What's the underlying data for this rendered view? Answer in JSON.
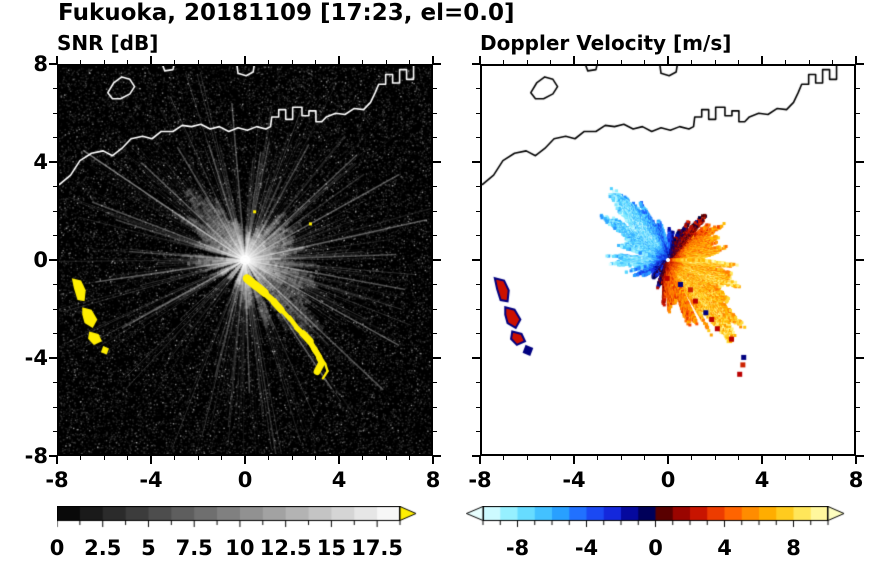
{
  "figure": {
    "title": "Fukuoka, 20181109 [17:23, el=0.0]",
    "background": "#ffffff"
  },
  "panels": [
    {
      "title": "SNR [dB]"
    },
    {
      "title": "Doppler Velocity [m/s]"
    }
  ],
  "axes": {
    "xlim": [
      -8,
      8
    ],
    "ylim": [
      -8,
      8
    ],
    "major_ticks": [
      -8,
      -4,
      0,
      4,
      8
    ],
    "minor_step": 1,
    "x_tick_labels": [
      "-8",
      "-4",
      "0",
      "4",
      "8"
    ],
    "y_tick_labels": [
      "8",
      "4",
      "0",
      "-4",
      "-8"
    ],
    "y_tick_values": [
      8,
      4,
      0,
      -4,
      -8
    ]
  },
  "colorbars": {
    "snr": {
      "range": [
        0,
        18.75
      ],
      "segments": 15,
      "tick_step": 1.25,
      "label_values": [
        0,
        2.5,
        5,
        7.5,
        10,
        12.5,
        15,
        17.5
      ],
      "labels": [
        "0",
        "2.5",
        "5",
        "7.5",
        "10",
        "12.5",
        "15",
        "17.5"
      ],
      "type": "grayscale",
      "over_arrow": "#FFEE00"
    },
    "doppler": {
      "range": [
        -10,
        10
      ],
      "segments": 20,
      "tick_step": 1,
      "label_values": [
        -8,
        -4,
        0,
        4,
        8
      ],
      "labels": [
        "-8",
        "-4",
        "0",
        "4",
        "8"
      ],
      "under_arrow": "#E8FFFF",
      "over_arrow": "#FFFFC0",
      "stops": [
        {
          "v": -10,
          "c": [
            232,
            255,
            255
          ]
        },
        {
          "v": -8.5,
          "c": [
            150,
            240,
            255
          ]
        },
        {
          "v": -7,
          "c": [
            80,
            210,
            255
          ]
        },
        {
          "v": -5.5,
          "c": [
            40,
            160,
            255
          ]
        },
        {
          "v": -4,
          "c": [
            30,
            90,
            255
          ]
        },
        {
          "v": -2.5,
          "c": [
            20,
            40,
            220
          ]
        },
        {
          "v": -1.2,
          "c": [
            0,
            0,
            140
          ]
        },
        {
          "v": -0.1,
          "c": [
            0,
            0,
            60
          ]
        },
        {
          "v": 0.1,
          "c": [
            60,
            0,
            0
          ]
        },
        {
          "v": 1.2,
          "c": [
            140,
            0,
            0
          ]
        },
        {
          "v": 2.5,
          "c": [
            200,
            20,
            0
          ]
        },
        {
          "v": 4,
          "c": [
            255,
            80,
            0
          ]
        },
        {
          "v": 5.5,
          "c": [
            255,
            140,
            0
          ]
        },
        {
          "v": 7,
          "c": [
            255,
            190,
            0
          ]
        },
        {
          "v": 8.5,
          "c": [
            255,
            230,
            90
          ]
        },
        {
          "v": 10,
          "c": [
            255,
            255,
            190
          ]
        }
      ]
    }
  },
  "chart_data": [
    {
      "type": "heatmap",
      "title": "SNR [dB]",
      "xlim": [
        -8,
        8
      ],
      "ylim": [
        -8,
        8
      ],
      "xticks": [
        -8,
        -4,
        0,
        4,
        8
      ],
      "yticks": [
        -8,
        -4,
        0,
        4,
        8
      ],
      "value_range_db": [
        0,
        18.75
      ],
      "colorbar_labels": [
        0,
        2.5,
        5,
        7.5,
        10,
        12.5,
        15,
        17.5
      ],
      "radar_site": [
        0,
        0
      ],
      "features": "black noise-speckle sea background, bright white radial beam streaks from radar at origin, gray echo fan strongest to NW and SE, saturated yellow ground-clutter arcs near (-7,-1)..(-6,-3.8) and a ragged arc from (0,-0.8) to (3.2,-4.6), white coastline with harbor piers across the top"
    },
    {
      "type": "heatmap",
      "title": "Doppler Velocity [m/s]",
      "xlim": [
        -8,
        8
      ],
      "ylim": [
        -8,
        8
      ],
      "xticks": [
        -8,
        -4,
        0,
        4,
        8
      ],
      "yticks": [
        -8,
        -4,
        0,
        4,
        8
      ],
      "value_range_ms": [
        -10,
        10
      ],
      "colorbar_labels": [
        -8,
        -4,
        0,
        4,
        8
      ],
      "radar_site": [
        0,
        0
      ],
      "features": "white background, black coastline, ragged radial velocity fan around radar: blue/cyan negative velocities to NW-N-W, dark red to orange positive to NE-E, yellow maximum positive to SE-S, red and navy ground-clutter patches at far west and scattered along the SE clutter arc"
    }
  ],
  "scene": {
    "seed": 20181109,
    "echo": {
      "vmax": 8,
      "dir_deg": -25,
      "base_range": 3.8,
      "sector_scale": [
        0.8,
        0.85,
        0.8,
        0.7,
        0.55,
        0.35,
        0.35,
        0.55,
        0.9,
        1.0,
        0.92,
        0.6,
        0.72,
        0.5,
        0.4,
        0.28,
        0.25,
        0.4,
        0.6,
        0.85,
        1.05,
        1.1,
        1.0,
        0.9
      ],
      "blocked_sectors": [
        [
          88,
          96
        ],
        [
          167,
          174
        ],
        [
          196,
          202
        ],
        [
          214,
          221
        ],
        [
          236,
          246
        ],
        [
          283,
          286
        ],
        [
          296,
          301
        ]
      ]
    },
    "bright_rays": [
      {
        "az": 147,
        "len": 8.3,
        "a": 0.45
      },
      {
        "az": 160,
        "len": 7,
        "a": 0.3
      },
      {
        "az": 138,
        "len": 6,
        "a": 0.3
      },
      {
        "az": 122,
        "len": 5.5,
        "a": 0.28
      },
      {
        "az": 108,
        "len": 5,
        "a": 0.25
      },
      {
        "az": 95,
        "len": 6.5,
        "a": 0.3
      },
      {
        "az": 78,
        "len": 5,
        "a": 0.22
      },
      {
        "az": 60,
        "len": 5.5,
        "a": 0.25
      },
      {
        "az": 42,
        "len": 6.5,
        "a": 0.3
      },
      {
        "az": 28,
        "len": 7.5,
        "a": 0.35
      },
      {
        "az": 12,
        "len": 8,
        "a": 0.35
      },
      {
        "az": 2,
        "len": 6.5,
        "a": 0.3
      },
      {
        "az": 350,
        "len": 7,
        "a": 0.3
      },
      {
        "az": 332,
        "len": 7.5,
        "a": 0.35
      },
      {
        "az": 318,
        "len": 8,
        "a": 0.3
      },
      {
        "az": 305,
        "len": 6.5,
        "a": 0.28
      },
      {
        "az": 272,
        "len": 5.5,
        "a": 0.25
      },
      {
        "az": 255,
        "len": 5,
        "a": 0.2
      },
      {
        "az": 208,
        "len": 6,
        "a": 0.28
      },
      {
        "az": 188,
        "len": 6.5,
        "a": 0.3
      },
      {
        "az": 176,
        "len": 5,
        "a": 0.22
      }
    ],
    "coastlines": [
      {
        "closed": false,
        "pts": [
          [
            -8,
            3.1
          ],
          [
            -7.5,
            3.5
          ],
          [
            -7.1,
            4.1
          ],
          [
            -6.6,
            4.4
          ],
          [
            -6.1,
            4.5
          ],
          [
            -5.7,
            4.3
          ],
          [
            -5.3,
            4.6
          ],
          [
            -4.9,
            5.0
          ],
          [
            -4.4,
            5.1
          ],
          [
            -4.0,
            5.0
          ],
          [
            -3.6,
            5.3
          ],
          [
            -3.1,
            5.3
          ],
          [
            -2.7,
            5.55
          ],
          [
            -2.3,
            5.5
          ],
          [
            -1.9,
            5.6
          ],
          [
            -1.5,
            5.4
          ],
          [
            -1.1,
            5.5
          ],
          [
            -0.7,
            5.3
          ],
          [
            -0.3,
            5.45
          ],
          [
            0.1,
            5.35
          ],
          [
            0.5,
            5.5
          ],
          [
            0.9,
            5.4
          ],
          [
            1.1,
            5.5
          ],
          [
            1.15,
            5.9
          ],
          [
            1.45,
            5.9
          ],
          [
            1.45,
            6.2
          ],
          [
            1.75,
            6.2
          ],
          [
            1.75,
            5.8
          ],
          [
            2.05,
            5.8
          ],
          [
            2.05,
            6.3
          ],
          [
            2.45,
            6.3
          ],
          [
            2.45,
            5.95
          ],
          [
            2.75,
            5.95
          ],
          [
            2.75,
            6.15
          ],
          [
            3.05,
            6.15
          ],
          [
            3.05,
            5.7
          ],
          [
            3.3,
            5.7
          ],
          [
            3.5,
            5.9
          ],
          [
            3.9,
            6.05
          ],
          [
            4.3,
            6.0
          ],
          [
            4.7,
            6.25
          ],
          [
            5.1,
            6.2
          ],
          [
            5.4,
            6.5
          ],
          [
            5.6,
            6.9
          ],
          [
            5.75,
            7.25
          ],
          [
            6.05,
            7.25
          ],
          [
            6.05,
            7.65
          ],
          [
            6.35,
            7.65
          ],
          [
            6.35,
            7.3
          ],
          [
            6.65,
            7.3
          ],
          [
            6.65,
            7.85
          ],
          [
            6.95,
            7.85
          ],
          [
            6.95,
            7.45
          ],
          [
            7.25,
            7.45
          ],
          [
            7.25,
            8.05
          ]
        ]
      },
      {
        "closed": true,
        "pts": [
          [
            -5.9,
            6.9
          ],
          [
            -5.65,
            7.3
          ],
          [
            -5.3,
            7.55
          ],
          [
            -4.95,
            7.45
          ],
          [
            -4.75,
            7.15
          ],
          [
            -4.95,
            6.85
          ],
          [
            -5.35,
            6.65
          ],
          [
            -5.7,
            6.65
          ]
        ]
      },
      {
        "closed": false,
        "pts": [
          [
            -0.35,
            8.05
          ],
          [
            -0.3,
            7.7
          ],
          [
            0.05,
            7.6
          ],
          [
            0.35,
            7.75
          ],
          [
            0.4,
            8.05
          ]
        ]
      },
      {
        "closed": false,
        "pts": [
          [
            -3.55,
            8.05
          ],
          [
            -3.45,
            7.8
          ],
          [
            -3.1,
            7.85
          ],
          [
            -3.05,
            8.05
          ]
        ]
      }
    ],
    "clutter_west": [
      [
        [
          -7.45,
          -0.75
        ],
        [
          -7.05,
          -0.85
        ],
        [
          -6.85,
          -1.25
        ],
        [
          -6.9,
          -1.7
        ],
        [
          -7.2,
          -1.65
        ],
        [
          -7.35,
          -1.2
        ]
      ],
      [
        [
          -7.0,
          -1.95
        ],
        [
          -6.6,
          -2.05
        ],
        [
          -6.35,
          -2.45
        ],
        [
          -6.55,
          -2.8
        ],
        [
          -6.9,
          -2.6
        ],
        [
          -7.0,
          -2.25
        ]
      ],
      [
        [
          -6.7,
          -2.95
        ],
        [
          -6.3,
          -3.05
        ],
        [
          -6.15,
          -3.35
        ],
        [
          -6.5,
          -3.5
        ],
        [
          -6.75,
          -3.25
        ]
      ],
      [
        [
          -6.1,
          -3.55
        ],
        [
          -5.85,
          -3.65
        ],
        [
          -5.95,
          -3.9
        ],
        [
          -6.2,
          -3.8
        ]
      ]
    ],
    "clutter_band": [
      [
        0.05,
        -0.8
      ],
      [
        0.45,
        -1.05
      ],
      [
        0.85,
        -1.35
      ],
      [
        1.25,
        -1.7
      ],
      [
        1.55,
        -2.05
      ],
      [
        1.9,
        -2.4
      ],
      [
        2.2,
        -2.75
      ],
      [
        2.5,
        -3.05
      ],
      [
        2.8,
        -3.35
      ],
      [
        3.0,
        -3.7
      ],
      [
        3.2,
        -4.0
      ],
      [
        3.3,
        -4.3
      ],
      [
        3.1,
        -4.6
      ]
    ],
    "specks": [
      [
        0.35,
        2.05
      ],
      [
        2.75,
        1.55
      ]
    ]
  }
}
